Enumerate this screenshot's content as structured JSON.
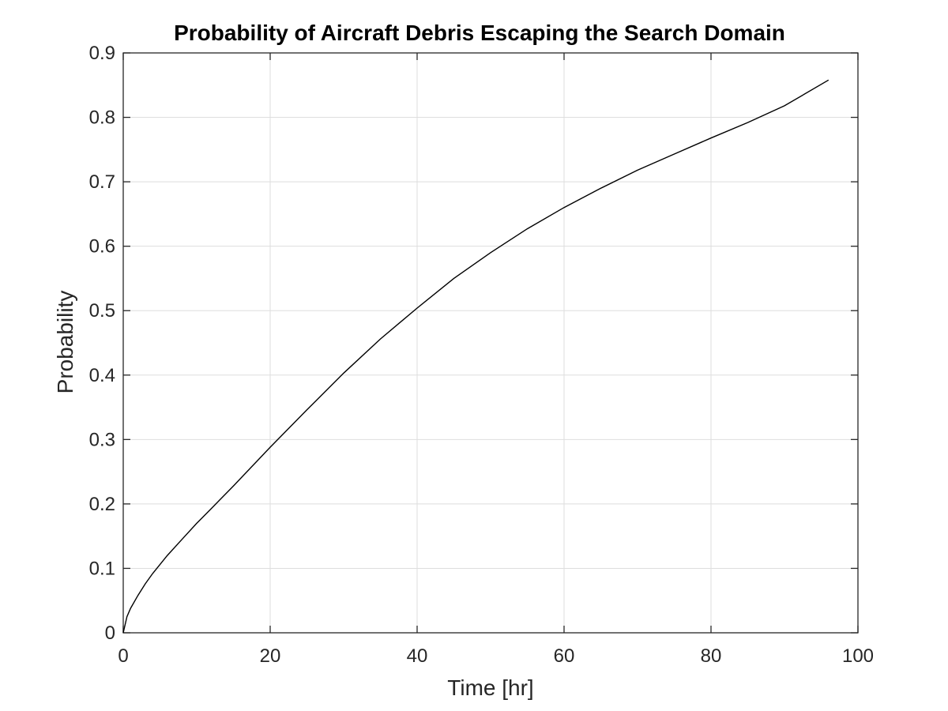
{
  "chart_data": {
    "type": "line",
    "title": "Probability of Aircraft Debris Escaping the Search Domain",
    "xlabel": "Time [hr]",
    "ylabel": "Probability",
    "xlim": [
      0,
      100
    ],
    "ylim": [
      0,
      0.9
    ],
    "xticks": [
      0,
      20,
      40,
      60,
      80,
      100
    ],
    "xtick_labels": [
      "0",
      "20",
      "40",
      "60",
      "80",
      "100"
    ],
    "yticks": [
      0,
      0.1,
      0.2,
      0.3,
      0.4,
      0.5,
      0.6,
      0.7,
      0.8,
      0.9
    ],
    "ytick_labels": [
      "0",
      "0.1",
      "0.2",
      "0.3",
      "0.4",
      "0.5",
      "0.6",
      "0.7",
      "0.8",
      "0.9"
    ],
    "grid": true,
    "series": [
      {
        "color": "#000000",
        "x": [
          0,
          0.5,
          1,
          2,
          3,
          4,
          5,
          6,
          8,
          10,
          12,
          15,
          20,
          25,
          30,
          35,
          40,
          45,
          50,
          55,
          60,
          65,
          70,
          75,
          80,
          85,
          90,
          96
        ],
        "y": [
          0,
          0.025,
          0.038,
          0.058,
          0.076,
          0.092,
          0.106,
          0.12,
          0.145,
          0.17,
          0.193,
          0.228,
          0.288,
          0.346,
          0.403,
          0.456,
          0.504,
          0.55,
          0.59,
          0.627,
          0.66,
          0.69,
          0.718,
          0.743,
          0.768,
          0.792,
          0.818,
          0.858
        ]
      }
    ]
  }
}
